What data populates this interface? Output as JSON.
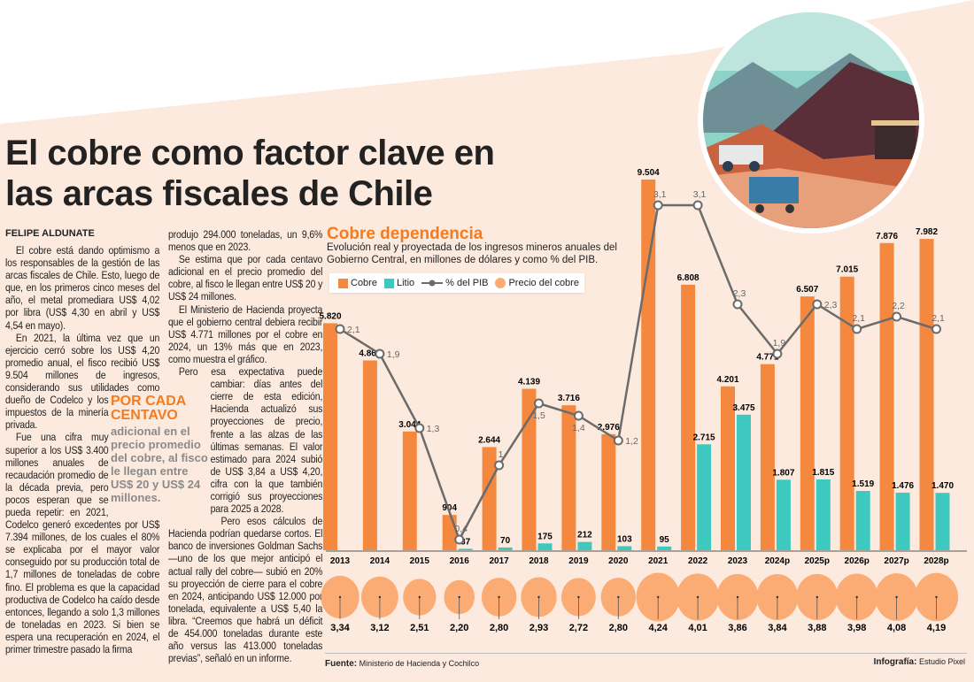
{
  "article": {
    "title_line1": "El cobre como factor clave en",
    "title_line2": "las arcas fiscales de Chile",
    "byline": "FELIPE ALDUNATE",
    "col1_a": "El cobre está dando optimismo a los responsables de la gestión de las arcas fiscales de Chile. Esto, luego de que, en los primeros cinco meses del año, el metal promediara US$ 4,02 por libra (US$ 4,30 en abril y US$ 4,54 en mayo).",
    "col1_b": "En 2021, la última vez que un ejercicio cerró sobre los US$ 4,20 promedio anual, el fisco recibió US$ 9.504 millones de ingresos, considerando sus utilidades como dueño de Codelco y los impuestos de la minería privada.",
    "col1_c": "Fue una cifra muy superior a los US$ 3.400 millones anuales de recaudación promedio de la década previa, pero pocos esperan que se pueda repetir: en 2021, Codelco generó excedentes por US$ 7.394 millones, de los cuales el 80% se explicaba por el mayor valor conseguido por su producción total de 1,7 millones de toneladas de cobre fino. El problema es que la capacidad productiva de Codelco ha caído desde entonces, llegando a solo 1,3 millones de toneladas en 2023. Si bien se espera una recuperación en 2024, el primer trimestre pasado la firma",
    "col2_a": "produjo 294.000 toneladas, un 9,6% menos que en 2023.",
    "col2_b": "Se estima que por cada centavo adicional en el precio promedio del cobre, al fisco le llegan entre US$ 20 y US$ 24 millones.",
    "col2_c": "El Ministerio de Hacienda proyecta que el gobierno central debiera recibir US$ 4.771 millones por el cobre en 2024, un 13% más que en 2023, como muestra el gráfico.",
    "col2_d": "Pero esa expectativa puede cambiar: días antes del cierre de esta edición, Hacienda actualizó sus proyecciones de precio, frente a las alzas de las últimas semanas. El valor estimado para 2024 subió de US$ 3,84 a US$ 4,20, cifra con la que también corrigió sus proyecciones para 2025 a 2028.",
    "col2_e": "Pero esos cálculos de Hacienda podrían quedarse cortos. El banco de inversiones Goldman Sachs —uno de los que mejor anticipó el actual rally del cobre— subió en 20% su proyección de cierre para el cobre en 2024, anticipando US$ 12.000 por tonelada, equivalente a US$ 5,40 la libra. “Creemos que habrá un déficit de 454.000 toneladas durante este año versus las 413.000 toneladas previas”, señaló en un informe.",
    "pullquote_head": "POR CADA CENTAVO",
    "pullquote_body": "adicional en el precio promedio del cobre, al fisco le llegan entre US$ 20 y US$ 24 millones."
  },
  "footer": {
    "source_label": "Fuente:",
    "source": "Ministerio de Hacienda y Cochilco",
    "credit_label": "Infografía:",
    "credit": "Estudio Pixel"
  },
  "colors": {
    "cobre": "#f5883f",
    "litio": "#3ec9c0",
    "pib": "#6b6b6b",
    "precio": "#fbab74",
    "accent": "#f47b20"
  },
  "chart_data": {
    "type": "bar",
    "title": "Cobre dependencia",
    "subtitle": "Evolución real y proyectada de los ingresos mineros anuales del Gobierno Central, en millones de dólares y como % del PIB.",
    "legend": [
      "Cobre",
      "Litio",
      "% del PIB",
      "Precio del cobre"
    ],
    "legend_placement": "top-left",
    "categories": [
      "2013",
      "2014",
      "2015",
      "2016",
      "2017",
      "2018",
      "2019",
      "2020",
      "2021",
      "2022",
      "2023",
      "2024p",
      "2025p",
      "2026p",
      "2027p",
      "2028p"
    ],
    "series": [
      {
        "name": "Cobre",
        "values": [
          5820,
          4866,
          3044,
          904,
          2644,
          4139,
          3716,
          2976,
          9504,
          6808,
          4201,
          4771,
          6507,
          7015,
          7876,
          7982
        ],
        "labels": [
          "5.820",
          "4.866",
          "3.044",
          "904",
          "2.644",
          "4.139",
          "3.716",
          "2.976",
          "9.504",
          "6.808",
          "4.201",
          "4.771",
          "6.507",
          "7.015",
          "7.876",
          "7.982"
        ]
      },
      {
        "name": "Litio",
        "values": [
          null,
          null,
          null,
          37,
          70,
          175,
          212,
          103,
          95,
          2715,
          3475,
          1807,
          1815,
          1519,
          1476,
          1470
        ],
        "labels": [
          "",
          "",
          "",
          "37",
          "70",
          "175",
          "212",
          "103",
          "95",
          "2.715",
          "3.475",
          "1.807",
          "1.815",
          "1.519",
          "1.476",
          "1.470"
        ]
      },
      {
        "name": "% del PIB",
        "values": [
          2.1,
          1.9,
          1.3,
          0.4,
          1,
          1.5,
          1.4,
          1.2,
          3.1,
          3.1,
          2.3,
          1.9,
          2.3,
          2.1,
          2.2,
          2.1
        ],
        "labels": [
          "2,1",
          "1,9",
          "1,3",
          "0,4",
          "1",
          "1,5",
          "1,4",
          "1,2",
          "3,1",
          "3,1",
          "2,3",
          "1,9",
          "2,3",
          "2,1",
          "2,2",
          "2,1"
        ]
      },
      {
        "name": "Precio del cobre",
        "values": [
          3.34,
          3.12,
          2.51,
          2.2,
          2.8,
          2.93,
          2.72,
          2.8,
          4.24,
          4.01,
          3.86,
          3.84,
          3.88,
          3.98,
          4.08,
          4.19
        ],
        "labels": [
          "3,34",
          "3,12",
          "2,51",
          "2,20",
          "2,80",
          "2,93",
          "2,72",
          "2,80",
          "4,24",
          "4,01",
          "3,86",
          "3,84",
          "3,88",
          "3,98",
          "4,08",
          "4,19"
        ]
      }
    ],
    "ylim": [
      0,
      9504
    ]
  }
}
